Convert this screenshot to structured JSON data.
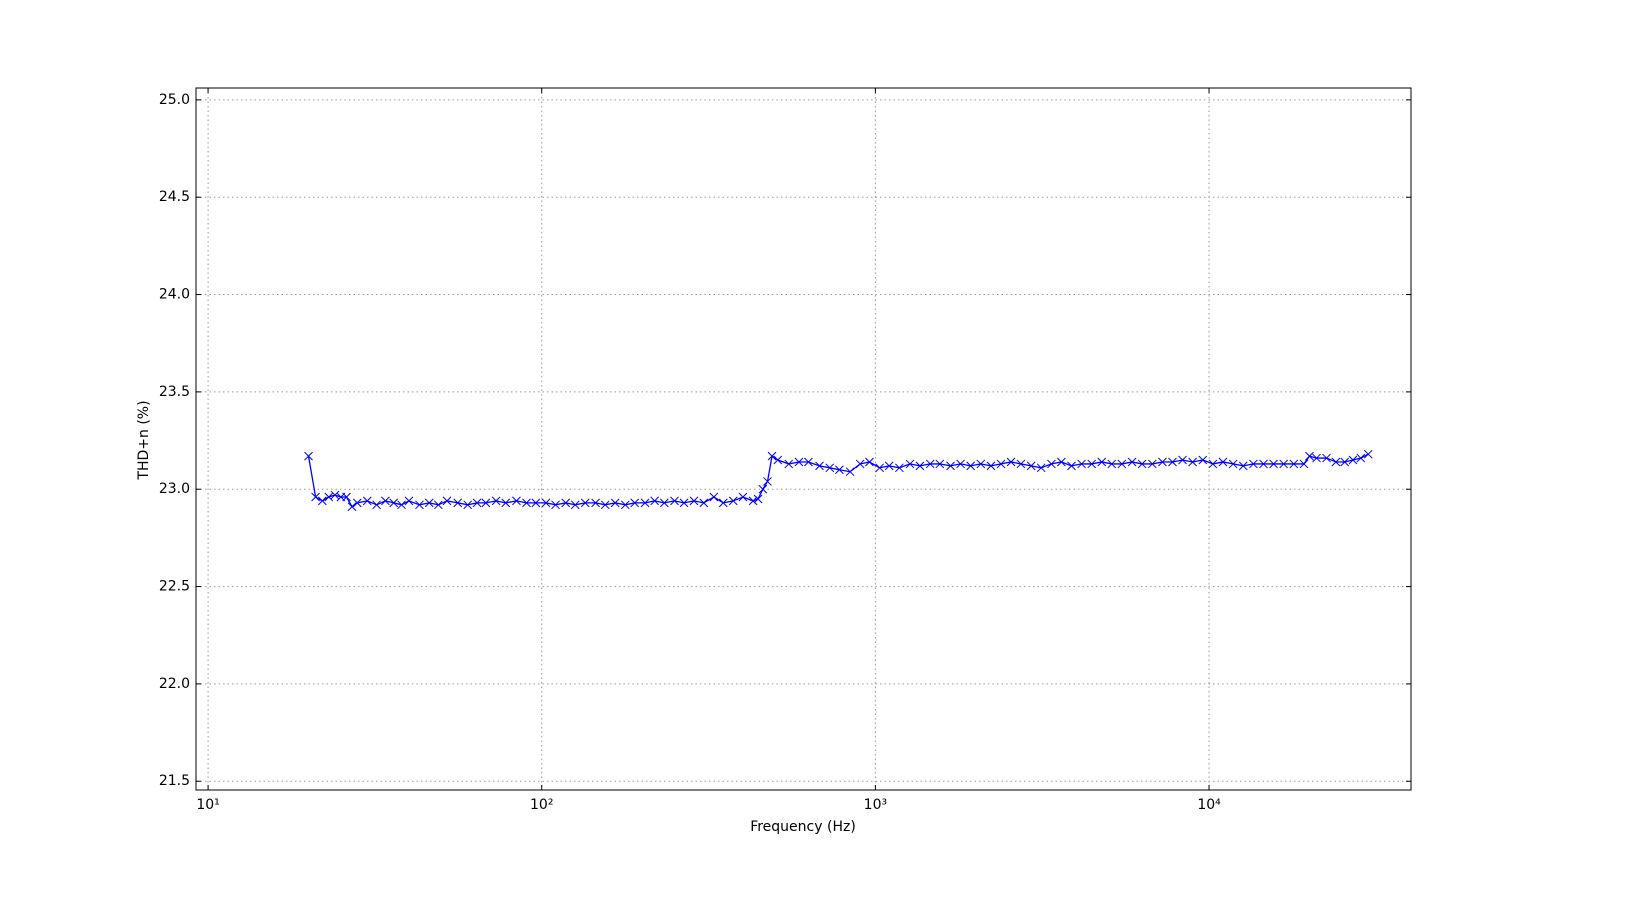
{
  "chart_data": {
    "type": "line",
    "xlabel": "Frequency (Hz)",
    "ylabel": "THD+n (%)",
    "xscale": "log",
    "grid": true,
    "xlim": [
      9.2,
      40300
    ],
    "ylim": [
      21.455,
      25.061
    ],
    "xticks": [
      {
        "value": 10,
        "label": "10¹"
      },
      {
        "value": 100,
        "label": "10²"
      },
      {
        "value": 1000,
        "label": "10³"
      },
      {
        "value": 10000,
        "label": "10⁴"
      }
    ],
    "yticks": [
      21.5,
      {
        "value": 22,
        "label": "22.0"
      },
      22.5,
      {
        "value": 23,
        "label": "23.0"
      },
      23.5,
      {
        "value": 24,
        "label": "24.0"
      },
      24.5,
      {
        "value": 25,
        "label": "25.0"
      }
    ],
    "x": [
      20,
      21,
      22,
      23,
      24,
      25,
      26,
      27,
      28,
      30,
      32,
      34,
      36,
      38,
      40,
      43,
      46,
      49,
      52,
      56,
      60,
      64,
      68,
      73,
      78,
      84,
      90,
      96,
      103,
      110,
      118,
      126,
      135,
      145,
      155,
      166,
      178,
      190,
      204,
      218,
      233,
      250,
      267,
      286,
      306,
      328,
      350,
      375,
      401,
      430,
      445,
      460,
      475,
      490,
      510,
      550,
      590,
      630,
      680,
      730,
      780,
      840,
      900,
      960,
      1030,
      1100,
      1180,
      1270,
      1360,
      1460,
      1560,
      1680,
      1800,
      1930,
      2070,
      2220,
      2380,
      2550,
      2730,
      2930,
      3140,
      3370,
      3610,
      3870,
      4150,
      4450,
      4770,
      5110,
      5480,
      5880,
      6300,
      6760,
      7250,
      7770,
      8330,
      8930,
      9580,
      10270,
      11010,
      11810,
      12660,
      13580,
      14560,
      15610,
      16740,
      17950,
      19250,
      20000,
      21000,
      22500,
      24000,
      25500,
      27000,
      28500,
      30000
    ],
    "series": [
      {
        "color": "#0000ff",
        "marker": "x",
        "values": [
          23.17,
          22.96,
          22.94,
          22.96,
          22.97,
          22.96,
          22.96,
          22.91,
          22.93,
          22.94,
          22.92,
          22.94,
          22.93,
          22.92,
          22.94,
          22.92,
          22.93,
          22.92,
          22.94,
          22.93,
          22.92,
          22.93,
          22.93,
          22.94,
          22.93,
          22.94,
          22.93,
          22.93,
          22.93,
          22.92,
          22.93,
          22.92,
          22.93,
          22.93,
          22.92,
          22.93,
          22.92,
          22.93,
          22.93,
          22.94,
          22.93,
          22.94,
          22.93,
          22.94,
          22.93,
          22.96,
          22.93,
          22.94,
          22.96,
          22.94,
          22.95,
          23.0,
          23.04,
          23.17,
          23.15,
          23.13,
          23.14,
          23.14,
          23.12,
          23.11,
          23.1,
          23.09,
          23.13,
          23.14,
          23.11,
          23.12,
          23.11,
          23.13,
          23.12,
          23.13,
          23.13,
          23.12,
          23.13,
          23.12,
          23.13,
          23.12,
          23.13,
          23.14,
          23.13,
          23.12,
          23.11,
          23.13,
          23.14,
          23.12,
          23.13,
          23.13,
          23.14,
          23.13,
          23.13,
          23.14,
          23.13,
          23.13,
          23.14,
          23.14,
          23.15,
          23.14,
          23.15,
          23.13,
          23.14,
          23.13,
          23.12,
          23.13,
          23.13,
          23.13,
          23.13,
          23.13,
          23.13,
          23.17,
          23.16,
          23.16,
          23.14,
          23.14,
          23.15,
          23.16,
          23.18
        ]
      }
    ]
  }
}
